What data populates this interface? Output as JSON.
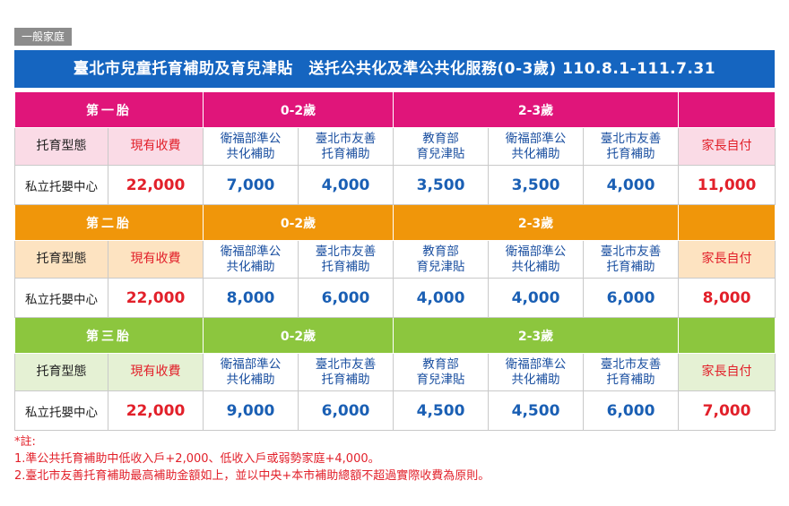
{
  "section_tag": "一般家庭",
  "title": "臺北市兒童托育補助及育兒津貼　送托公共化及準公共化服務(0-3歲) 110.8.1-111.7.31",
  "colors": {
    "title_bg": "#1565c0",
    "first_band": "#e0157a",
    "first_light": "#fadbe6",
    "second_band": "#f0960a",
    "second_light": "#fde3c1",
    "third_band": "#8cc63e",
    "third_light": "#e5f1d4"
  },
  "headers": {
    "age_0_2": "0-2歲",
    "age_2_3": "2-3歲",
    "type": "托育型態",
    "current_fee": "現有收費",
    "mohw_subsidy": "衛福部準公\n共化補助",
    "taipei_subsidy": "臺北市友善\n托育補助",
    "moe_allowance": "教育部\n育兒津貼",
    "parent_pay": "家長自付"
  },
  "sections": [
    {
      "birth_label": "第一胎",
      "row_type": "私立托嬰中心",
      "current_fee": "22,000",
      "mohw_0_2": "7,000",
      "taipei_0_2": "4,000",
      "moe_2_3": "3,500",
      "mohw_2_3": "3,500",
      "taipei_2_3": "4,000",
      "parent_pay": "11,000"
    },
    {
      "birth_label": "第二胎",
      "row_type": "私立托嬰中心",
      "current_fee": "22,000",
      "mohw_0_2": "8,000",
      "taipei_0_2": "6,000",
      "moe_2_3": "4,000",
      "mohw_2_3": "4,000",
      "taipei_2_3": "6,000",
      "parent_pay": "8,000"
    },
    {
      "birth_label": "第三胎",
      "row_type": "私立托嬰中心",
      "current_fee": "22,000",
      "mohw_0_2": "9,000",
      "taipei_0_2": "6,000",
      "moe_2_3": "4,500",
      "mohw_2_3": "4,500",
      "taipei_2_3": "6,000",
      "parent_pay": "7,000"
    }
  ],
  "notes": {
    "heading": "*註:",
    "line1": "1.準公共托育補助中低收入戶+2,000、低收入戶或弱勢家庭+4,000。",
    "line2": "2.臺北市友善托育補助最高補助金額如上，並以中央+本市補助總額不超過實際收費為原則。"
  }
}
